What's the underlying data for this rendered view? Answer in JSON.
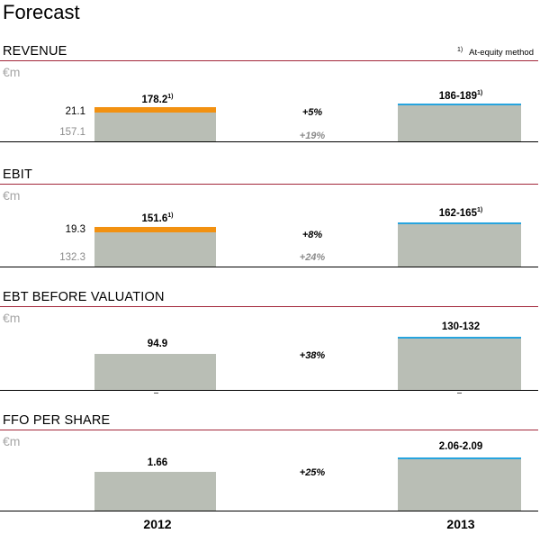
{
  "page": {
    "title": "Forecast",
    "footnote_marker": "1)",
    "footnote_text": "At-equity method",
    "years": [
      "2012",
      "2013"
    ]
  },
  "colors": {
    "bar": "#b9beb5",
    "at_equity": "#f29111",
    "forecast_cap": "#27a4de",
    "section_rule": "#a3273a"
  },
  "chart_data": [
    {
      "type": "bar",
      "title": "REVENUE",
      "unit": "€m",
      "categories": [
        "2012",
        "2013"
      ],
      "series": [
        {
          "name": "",
          "values": [
            157.1,
            186
          ]
        },
        {
          "name": "At-equity method",
          "values": [
            21.1,
            0
          ]
        }
      ],
      "labels": {
        "total_2012": "178.2",
        "total_2013": "186-189",
        "base_2012": "157.1",
        "equity_2012": "21.1"
      },
      "footnote_on_totals": "1)",
      "change_total": "+5%",
      "change_base": "+19%",
      "forecast_range_2013": [
        186,
        189
      ]
    },
    {
      "type": "bar",
      "title": "EBIT",
      "unit": "€m",
      "categories": [
        "2012",
        "2013"
      ],
      "series": [
        {
          "name": "",
          "values": [
            132.3,
            162
          ]
        },
        {
          "name": "At-equity method",
          "values": [
            19.3,
            0
          ]
        }
      ],
      "labels": {
        "total_2012": "151.6",
        "total_2013": "162-165",
        "base_2012": "132.3",
        "equity_2012": "19.3"
      },
      "footnote_on_totals": "1)",
      "change_total": "+8%",
      "change_base": "+24%",
      "forecast_range_2013": [
        162,
        165
      ]
    },
    {
      "type": "bar",
      "title": "EBT BEFORE VALUATION",
      "unit": "€m",
      "categories": [
        "2012",
        "2013"
      ],
      "series": [
        {
          "name": "",
          "values": [
            94.9,
            130
          ]
        }
      ],
      "labels": {
        "total_2012": "94.9",
        "total_2013": "130-132"
      },
      "change_total": "+38%",
      "forecast_range_2013": [
        130,
        132
      ]
    },
    {
      "type": "bar",
      "title": "FFO PER SHARE",
      "unit": "€m",
      "categories": [
        "2012",
        "2013"
      ],
      "series": [
        {
          "name": "",
          "values": [
            1.66,
            2.06
          ]
        }
      ],
      "labels": {
        "total_2012": "1.66",
        "total_2013": "2.06-2.09"
      },
      "change_total": "+25%",
      "forecast_range_2013": [
        2.06,
        2.09
      ]
    }
  ]
}
